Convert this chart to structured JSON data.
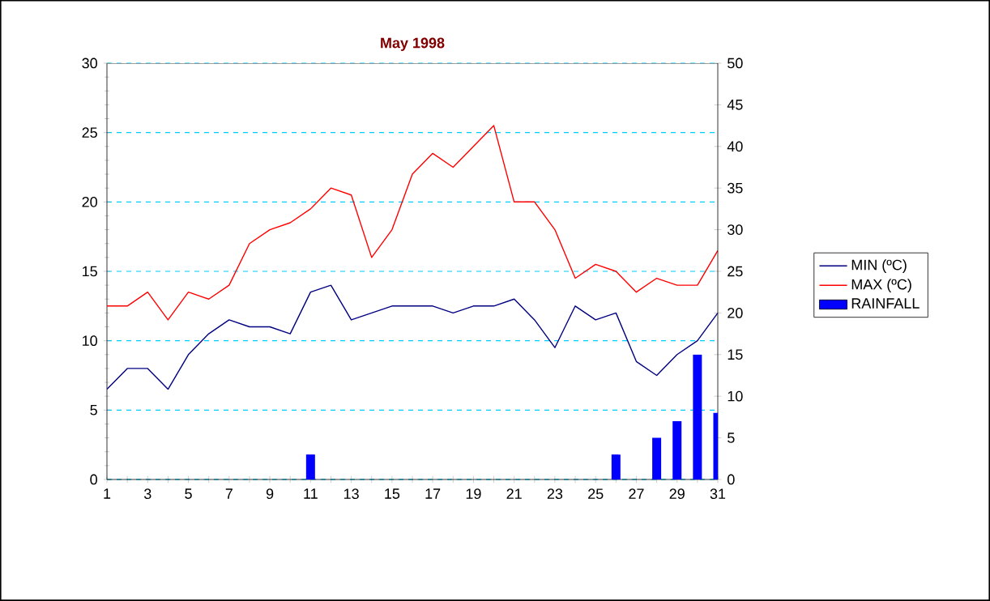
{
  "chart_data": {
    "type": "line",
    "title": "May 1998",
    "x": [
      1,
      2,
      3,
      4,
      5,
      6,
      7,
      8,
      9,
      10,
      11,
      12,
      13,
      14,
      15,
      16,
      17,
      18,
      19,
      20,
      21,
      22,
      23,
      24,
      25,
      26,
      27,
      28,
      29,
      30,
      31
    ],
    "series": [
      {
        "name": "MIN (ºC)",
        "color": "#000080",
        "values": [
          6.5,
          8,
          8,
          6.5,
          9,
          10.5,
          11.5,
          11,
          11,
          10.5,
          13.5,
          14,
          11.5,
          12,
          12.5,
          12.5,
          12.5,
          12,
          12.5,
          12.5,
          13,
          11.5,
          9.5,
          12.5,
          11.5,
          12,
          8.5,
          7.5,
          9,
          10,
          12
        ]
      },
      {
        "name": "MAX (ºC)",
        "color": "#ff0000",
        "values": [
          12.5,
          12.5,
          13.5,
          11.5,
          13.5,
          13,
          14,
          17,
          18,
          18.5,
          19.5,
          21,
          20.5,
          16,
          18,
          22,
          23.5,
          22.5,
          24,
          25.5,
          20,
          20,
          18,
          14.5,
          15.5,
          15,
          13.5,
          14.5,
          14,
          14,
          16.5
        ]
      },
      {
        "name": "RAINFALL",
        "color": "#0000ff",
        "type": "bar",
        "axis": "y2",
        "values": [
          0,
          0,
          0,
          0,
          0,
          0,
          0,
          0,
          0,
          0,
          3,
          0,
          0,
          0,
          0,
          0,
          0,
          0,
          0,
          0,
          0,
          0,
          0,
          0,
          0,
          3,
          0,
          5,
          7,
          15,
          8
        ]
      }
    ],
    "xlim": [
      1,
      31
    ],
    "xticks": [
      1,
      {
        "value": 2,
        "label": null
      },
      3,
      {
        "value": 4,
        "label": null
      },
      5,
      {
        "value": 6,
        "label": null
      },
      7,
      {
        "value": 8,
        "label": null
      },
      9,
      {
        "value": 10,
        "label": null
      },
      11,
      {
        "value": 12,
        "label": null
      },
      13,
      {
        "value": 14,
        "label": null
      },
      15,
      {
        "value": 16,
        "label": null
      },
      17,
      {
        "value": 18,
        "label": null
      },
      19,
      {
        "value": 20,
        "label": null
      },
      21,
      {
        "value": 22,
        "label": null
      },
      23,
      {
        "value": 24,
        "label": null
      },
      25,
      {
        "value": 26,
        "label": null
      },
      27,
      {
        "value": 28,
        "label": null
      },
      29,
      {
        "value": 30,
        "label": null
      },
      31
    ],
    "ylim": [
      0,
      30
    ],
    "yticks": [
      0,
      5,
      10,
      15,
      20,
      25,
      30
    ],
    "y2lim": [
      0,
      50
    ],
    "y2ticks": [
      0,
      5,
      10,
      15,
      20,
      25,
      30,
      35,
      40,
      45,
      50
    ],
    "grid": "y",
    "legend": "right",
    "marker": "none",
    "line_style": "solid"
  }
}
